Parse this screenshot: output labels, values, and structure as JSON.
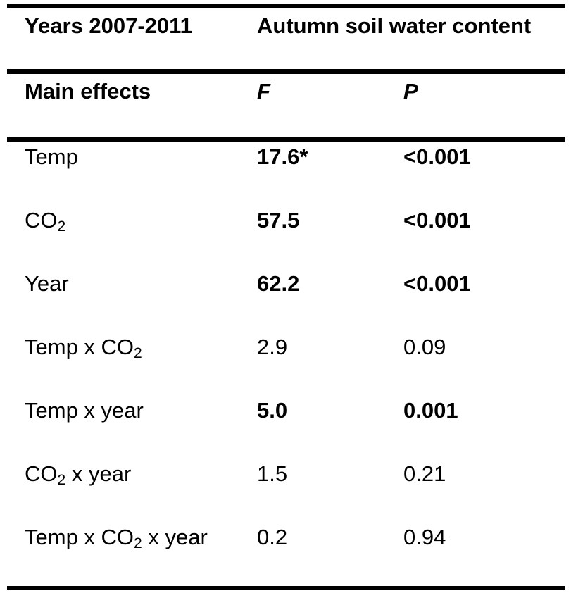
{
  "table": {
    "title_row": {
      "period_label": "Years 2007-2011",
      "response_label": "Autumn soil water content"
    },
    "column_headers": {
      "effects_header": "Main effects",
      "f_header": "F",
      "p_header": "P"
    },
    "rows": [
      {
        "effect": "Temp",
        "f": "17.6*",
        "p": "<0.001",
        "significant": true
      },
      {
        "effect": "CO₂",
        "f": "57.5",
        "p": "<0.001",
        "significant": true
      },
      {
        "effect": "Year",
        "f": "62.2",
        "p": "<0.001",
        "significant": true
      },
      {
        "effect": "Temp x CO₂",
        "f": "2.9",
        "p": "0.09",
        "significant": false
      },
      {
        "effect": "Temp x year",
        "f": "5.0",
        "p": "0.001",
        "significant": true
      },
      {
        "effect": "CO₂ x year",
        "f": "1.5",
        "p": "0.21",
        "significant": false
      },
      {
        "effect": "Temp x CO₂ x year",
        "f": "0.2",
        "p": "0.94",
        "significant": false
      }
    ]
  },
  "chart_data": {
    "type": "table",
    "title": "Years 2007-2011 — Autumn soil water content",
    "columns": [
      "Main effects",
      "F",
      "P"
    ],
    "records": [
      [
        "Temp",
        "17.6*",
        "<0.001"
      ],
      [
        "CO₂",
        "57.5",
        "<0.001"
      ],
      [
        "Year",
        "62.2",
        "<0.001"
      ],
      [
        "Temp x CO₂",
        "2.9",
        "0.09"
      ],
      [
        "Temp x year",
        "5.0",
        "0.001"
      ],
      [
        "CO₂ x year",
        "1.5",
        "0.21"
      ],
      [
        "Temp x CO₂ x year",
        "0.2",
        "0.94"
      ]
    ]
  },
  "colors": {
    "text": "#000000",
    "background": "#ffffff",
    "rule": "#000000"
  }
}
